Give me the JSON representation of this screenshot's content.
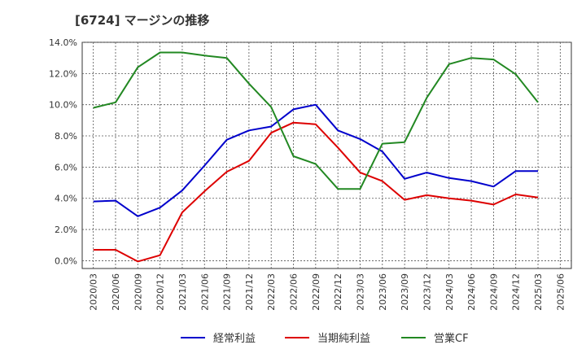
{
  "chart_data": {
    "type": "line",
    "title": "[6724]  マージンの推移",
    "xlabel": "",
    "ylabel": "",
    "ylim": [
      -0.5,
      14.0
    ],
    "y_ticks": [
      "14.0%",
      "12.0%",
      "10.0%",
      "8.0%",
      "6.0%",
      "4.0%",
      "2.0%",
      "0.0%"
    ],
    "y_tick_values": [
      14,
      12,
      10,
      8,
      6,
      4,
      2,
      0
    ],
    "x": [
      "2020/03",
      "2020/06",
      "2020/09",
      "2020/12",
      "2021/03",
      "2021/06",
      "2021/09",
      "2021/12",
      "2022/03",
      "2022/06",
      "2022/09",
      "2022/12",
      "2023/03",
      "2023/06",
      "2023/09",
      "2023/12",
      "2024/03",
      "2024/06",
      "2024/09",
      "2024/12",
      "2025/03",
      "2025/06"
    ],
    "grid": true,
    "legend_position": "bottom",
    "series": [
      {
        "name": "経常利益",
        "color": "#0000cc",
        "values": [
          3.8,
          3.85,
          2.85,
          3.4,
          4.5,
          6.1,
          7.75,
          8.35,
          8.6,
          9.7,
          10.0,
          8.35,
          7.8,
          7.0,
          5.25,
          5.65,
          5.3,
          5.1,
          4.75,
          5.75,
          5.75,
          null
        ]
      },
      {
        "name": "当期純利益",
        "color": "#dd0000",
        "values": [
          0.7,
          0.7,
          -0.05,
          0.35,
          3.1,
          4.45,
          5.7,
          6.4,
          8.2,
          8.85,
          8.75,
          7.25,
          5.65,
          5.1,
          3.9,
          4.2,
          4.0,
          3.85,
          3.6,
          4.25,
          4.05,
          null
        ]
      },
      {
        "name": "営業CF",
        "color": "#228822",
        "values": [
          9.8,
          10.15,
          12.4,
          13.35,
          13.35,
          13.15,
          13.0,
          11.35,
          9.85,
          6.7,
          6.2,
          4.6,
          4.6,
          7.5,
          7.6,
          10.45,
          12.6,
          13.0,
          12.9,
          11.95,
          10.15,
          null
        ]
      }
    ]
  }
}
